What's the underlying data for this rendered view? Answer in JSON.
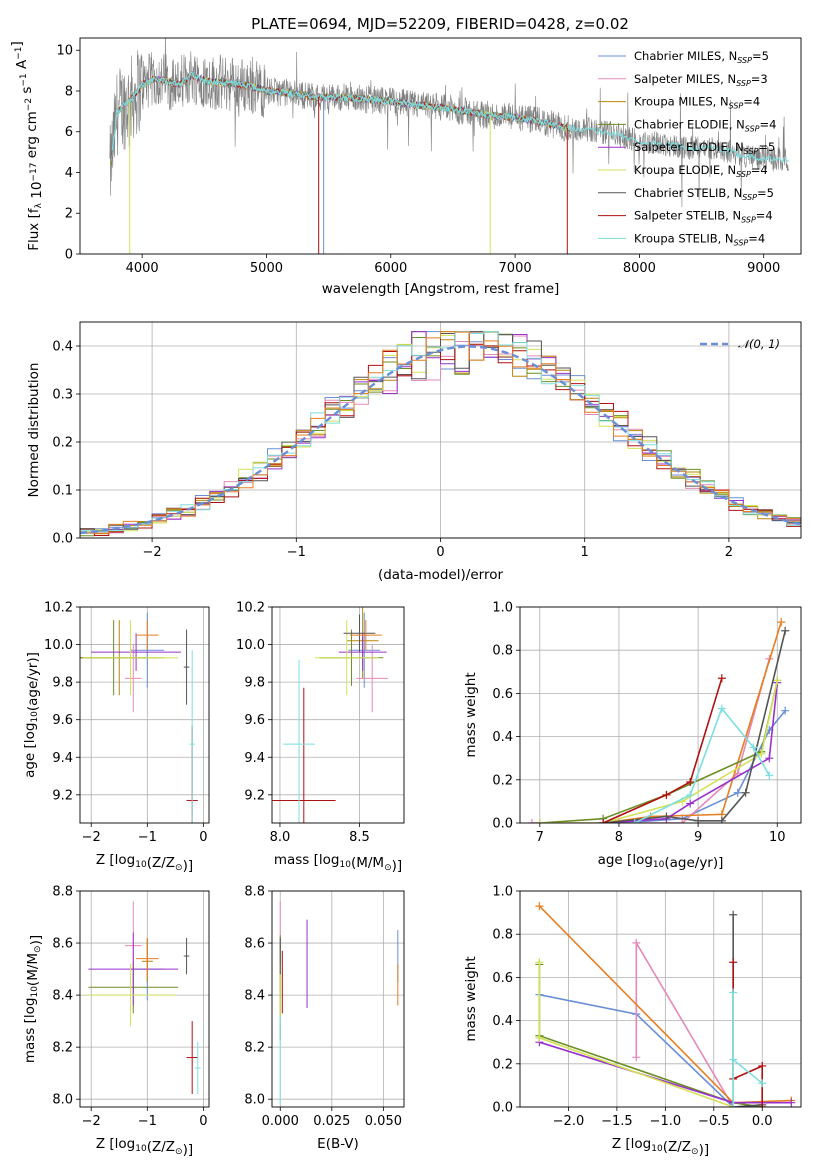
{
  "figure": {
    "title": "PLATE=0694, MJD=52209, FIBERID=0428, z=0.02",
    "series": [
      {
        "name": "Chabrier MILES, N_SSP=5",
        "nssp": "5",
        "color": "#6a8fd6"
      },
      {
        "name": "Salpeter MILES, N_SSP=3",
        "nssp": "3",
        "color": "#e589b8"
      },
      {
        "name": "Kroupa MILES, N_SSP=4",
        "nssp": "4",
        "color": "#b8860b"
      },
      {
        "name": "Chabrier ELODIE, N_SSP=4",
        "nssp": "4",
        "color": "#6b8e23"
      },
      {
        "name": "Salpeter ELODIE, N_SSP=5",
        "nssp": "5",
        "color": "#9932cc"
      },
      {
        "name": "Kroupa ELODIE, N_SSP=4",
        "nssp": "4",
        "color": "#d4e157"
      },
      {
        "name": "Chabrier STELIB, N_SSP=5",
        "nssp": "5",
        "color": "#555555"
      },
      {
        "name": "Salpeter STELIB, N_SSP=4",
        "nssp": "4",
        "color": "#b01010"
      },
      {
        "name": "Kroupa STELIB, N_SSP=4",
        "nssp": "4",
        "color": "#7ddede"
      }
    ],
    "extra_colors": {
      "orange": "#e67e22",
      "data": "#808080"
    }
  },
  "chart_data": [
    {
      "id": "spectrum",
      "type": "line",
      "title": "PLATE=0694, MJD=52209, FIBERID=0428, z=0.02",
      "xlabel": "wavelength [Angstrom, rest frame]",
      "ylabel": "Flux [f_λ 10^-17 erg cm^-2 s^-1 A^-1]",
      "xlim": [
        3500,
        9300
      ],
      "ylim": [
        0,
        10.6
      ],
      "xticks": [
        4000,
        5000,
        6000,
        7000,
        8000,
        9000
      ],
      "yticks": [
        0,
        2,
        4,
        6,
        8,
        10
      ],
      "grid": false,
      "legend": "top-right",
      "data_curve": {
        "x": [
          3740,
          3800,
          3900,
          4000,
          4100,
          4200,
          4300,
          4400,
          4500,
          4600,
          4700,
          4800,
          4900,
          5000,
          5200,
          5400,
          5600,
          5800,
          6000,
          6200,
          6400,
          6600,
          6800,
          7000,
          7200,
          7400,
          7600,
          7800,
          8000,
          8200,
          8400,
          8600,
          8800,
          9000,
          9200
        ],
        "y": [
          4.0,
          7.0,
          7.5,
          8.3,
          8.6,
          8.5,
          8.3,
          8.8,
          8.5,
          8.4,
          8.4,
          8.3,
          8.2,
          8.0,
          7.9,
          7.7,
          7.7,
          7.6,
          7.5,
          7.3,
          7.2,
          7.0,
          6.8,
          6.7,
          6.5,
          6.2,
          6.1,
          5.9,
          5.5,
          5.4,
          5.2,
          5.2,
          4.9,
          4.7,
          4.6
        ]
      },
      "clip_lines": [
        {
          "x": 3900,
          "color_index": 5
        },
        {
          "x": 5420,
          "color_index": 7
        },
        {
          "x": 5460,
          "color_index": 0
        },
        {
          "x": 6800,
          "color_index": 5
        },
        {
          "x": 7420,
          "color_index": 7
        }
      ]
    },
    {
      "id": "residuals",
      "type": "histogram",
      "xlabel": "(data-model)/error",
      "ylabel": "Normed distribution",
      "xlim": [
        -2.5,
        2.5
      ],
      "ylim": [
        0,
        0.45
      ],
      "xticks": [
        -2,
        -1,
        0,
        1,
        2
      ],
      "yticks": [
        0.0,
        0.1,
        0.2,
        0.3,
        0.4
      ],
      "grid": true,
      "legend": "top-right",
      "reference_curve": {
        "name": "N(0,1)",
        "mu": 0.2,
        "sigma": 1.0,
        "color": "#6a8fd6"
      },
      "bin_width": 0.1
    },
    {
      "id": "age-vs-z",
      "type": "scatter",
      "xlabel": "Z [log10(Z/Z_sun)]",
      "ylabel": "age [log10(age/yr)]",
      "xlim": [
        -2.2,
        0.1
      ],
      "ylim": [
        9.05,
        10.2
      ],
      "xticks": [
        -2,
        -1,
        0
      ],
      "yticks": [
        9.2,
        9.4,
        9.6,
        9.8,
        10.0,
        10.2
      ],
      "grid": true,
      "points": [
        {
          "c": 0,
          "x": -1.0,
          "y": 9.97,
          "xe": 0.3,
          "ye": 0.2
        },
        {
          "c": 1,
          "x": -1.25,
          "y": 9.82,
          "xe": 0.15,
          "ye": 0.18
        },
        {
          "c": 2,
          "x": -1.5,
          "y": 9.93,
          "xe": 0.8,
          "ye": 0.2
        },
        {
          "c": 3,
          "x": -1.6,
          "y": 9.93,
          "xe": 0.6,
          "ye": 0.2
        },
        {
          "c": 4,
          "x": -1.2,
          "y": 9.96,
          "xe": 0.8,
          "ye": 0.1
        },
        {
          "c": 5,
          "x": -1.3,
          "y": 9.93,
          "xe": 0.85,
          "ye": 0.2
        },
        {
          "c": 6,
          "x": -0.3,
          "y": 9.88,
          "xe": 0.05,
          "ye": 0.2
        },
        {
          "c": 7,
          "x": -0.2,
          "y": 9.17,
          "xe": 0.1,
          "ye": 0.4
        },
        {
          "c": 8,
          "x": -0.2,
          "y": 9.47,
          "xe": 0.05,
          "ye": 0.5
        },
        {
          "c": 9,
          "x": -1.0,
          "y": 10.05,
          "xe": 0.2,
          "ye": 0.08
        }
      ]
    },
    {
      "id": "age-vs-mass",
      "type": "scatter",
      "xlabel": "mass [log10(M/M_sun)]",
      "ylabel": "",
      "xlim": [
        7.95,
        8.78
      ],
      "ylim": [
        9.05,
        10.2
      ],
      "xticks": [
        8.0,
        8.5
      ],
      "yticks": [
        9.2,
        9.4,
        9.6,
        9.8,
        10.0,
        10.2
      ],
      "grid": true,
      "points": [
        {
          "c": 0,
          "x": 8.53,
          "y": 9.97,
          "xe": 0.1,
          "ye": 0.2
        },
        {
          "c": 1,
          "x": 8.58,
          "y": 9.82,
          "xe": 0.1,
          "ye": 0.18
        },
        {
          "c": 2,
          "x": 8.52,
          "y": 10.02,
          "xe": 0.1,
          "ye": 0.2
        },
        {
          "c": 3,
          "x": 8.45,
          "y": 9.93,
          "xe": 0.2,
          "ye": 0.15
        },
        {
          "c": 4,
          "x": 8.52,
          "y": 9.96,
          "xe": 0.15,
          "ye": 0.1
        },
        {
          "c": 5,
          "x": 8.42,
          "y": 9.93,
          "xe": 0.2,
          "ye": 0.2
        },
        {
          "c": 6,
          "x": 8.5,
          "y": 10.06,
          "xe": 0.1,
          "ye": 0.1
        },
        {
          "c": 7,
          "x": 8.15,
          "y": 9.17,
          "xe": 0.2,
          "ye": 0.6
        },
        {
          "c": 8,
          "x": 8.12,
          "y": 9.47,
          "xe": 0.1,
          "ye": 0.45
        },
        {
          "c": 9,
          "x": 8.54,
          "y": 10.05,
          "xe": 0.1,
          "ye": 0.08
        }
      ]
    },
    {
      "id": "weight-vs-age",
      "type": "line",
      "xlabel": "age [log10(age/yr)]",
      "ylabel": "mass weight",
      "xlim": [
        6.75,
        10.3
      ],
      "ylim": [
        0,
        1.0
      ],
      "xticks": [
        7,
        8,
        9,
        10
      ],
      "yticks": [
        0.0,
        0.2,
        0.4,
        0.6,
        0.8,
        1.0
      ],
      "grid": true,
      "series": [
        {
          "c": 0,
          "x": [
            8.0,
            8.8,
            9.5,
            9.9,
            10.1
          ],
          "y": [
            0.0,
            0.02,
            0.14,
            0.43,
            0.52
          ]
        },
        {
          "c": 1,
          "x": [
            6.9,
            8.8,
            9.5,
            9.9
          ],
          "y": [
            0.0,
            0.0,
            0.23,
            0.76
          ]
        },
        {
          "c": 9,
          "x": [
            7.8,
            8.4,
            9.3,
            10.05
          ],
          "y": [
            0.0,
            0.03,
            0.04,
            0.93
          ]
        },
        {
          "c": 3,
          "x": [
            7.0,
            7.8,
            8.6,
            9.8,
            10.0
          ],
          "y": [
            0.0,
            0.02,
            0.13,
            0.33,
            0.66
          ]
        },
        {
          "c": 4,
          "x": [
            7.8,
            8.6,
            8.9,
            9.9,
            10.0
          ],
          "y": [
            0.0,
            0.02,
            0.09,
            0.3,
            0.65
          ]
        },
        {
          "c": 5,
          "x": [
            7.0,
            7.8,
            8.8,
            9.8,
            10.0
          ],
          "y": [
            0.0,
            0.0,
            0.1,
            0.32,
            0.66
          ]
        },
        {
          "c": 6,
          "x": [
            7.8,
            8.6,
            9.0,
            9.3,
            9.6,
            10.1
          ],
          "y": [
            0.0,
            0.03,
            0.01,
            0.01,
            0.14,
            0.89
          ]
        },
        {
          "c": 7,
          "x": [
            7.8,
            8.6,
            8.9,
            9.3
          ],
          "y": [
            0.0,
            0.13,
            0.19,
            0.67
          ]
        },
        {
          "c": 8,
          "x": [
            8.2,
            8.9,
            9.3,
            9.7,
            9.9
          ],
          "y": [
            0.0,
            0.13,
            0.53,
            0.35,
            0.22
          ]
        }
      ]
    },
    {
      "id": "mass-vs-z",
      "type": "scatter",
      "xlabel": "Z [log10(Z/Z_sun)]",
      "ylabel": "mass [log10(M/M_sun)]",
      "xlim": [
        -2.2,
        0.1
      ],
      "ylim": [
        7.97,
        8.8
      ],
      "xticks": [
        -2,
        -1,
        0
      ],
      "yticks": [
        8.0,
        8.2,
        8.4,
        8.6,
        8.8
      ],
      "grid": true,
      "points": [
        {
          "c": 0,
          "x": -1.0,
          "y": 8.5,
          "xe": 0.3,
          "ye": 0.12
        },
        {
          "c": 1,
          "x": -1.25,
          "y": 8.59,
          "xe": 0.15,
          "ye": 0.17
        },
        {
          "c": 2,
          "x": -1.0,
          "y": 8.53,
          "xe": 0.1,
          "ye": 0.08
        },
        {
          "c": 3,
          "x": -1.25,
          "y": 8.43,
          "xe": 0.8,
          "ye": 0.1
        },
        {
          "c": 4,
          "x": -1.25,
          "y": 8.5,
          "xe": 0.8,
          "ye": 0.14
        },
        {
          "c": 5,
          "x": -1.3,
          "y": 8.4,
          "xe": 0.8,
          "ye": 0.12
        },
        {
          "c": 6,
          "x": -0.3,
          "y": 8.55,
          "xe": 0.05,
          "ye": 0.07
        },
        {
          "c": 7,
          "x": -0.2,
          "y": 8.16,
          "xe": 0.1,
          "ye": 0.14
        },
        {
          "c": 8,
          "x": -0.1,
          "y": 8.12,
          "xe": 0.05,
          "ye": 0.1
        },
        {
          "c": 9,
          "x": -1.0,
          "y": 8.54,
          "xe": 0.2,
          "ye": 0.08
        }
      ]
    },
    {
      "id": "mass-vs-ebv",
      "type": "scatter",
      "xlabel": "E(B-V)",
      "ylabel": "",
      "xlim": [
        -0.004,
        0.06
      ],
      "ylim": [
        7.97,
        8.8
      ],
      "xticks": [
        0.0,
        0.025,
        0.05
      ],
      "yticks": [
        8.0,
        8.2,
        8.4,
        8.6,
        8.8
      ],
      "grid": true,
      "points": [
        {
          "c": 0,
          "x": 0.057,
          "y": 8.55,
          "xe": 0,
          "ye": 0.1
        },
        {
          "c": 1,
          "x": 0.0,
          "y": 8.59,
          "xe": 0,
          "ye": 0.17
        },
        {
          "c": 9,
          "x": 0.057,
          "y": 8.44,
          "xe": 0,
          "ye": 0.08
        },
        {
          "c": 3,
          "x": 0.0,
          "y": 8.43,
          "xe": 0,
          "ye": 0.2
        },
        {
          "c": 4,
          "x": 0.013,
          "y": 8.52,
          "xe": 0,
          "ye": 0.17
        },
        {
          "c": 5,
          "x": 0.0,
          "y": 8.4,
          "xe": 0,
          "ye": 0.12
        },
        {
          "c": 6,
          "x": 0.0,
          "y": 8.55,
          "xe": 0,
          "ye": 0.07
        },
        {
          "c": 7,
          "x": 0.001,
          "y": 8.45,
          "xe": 0,
          "ye": 0.12
        },
        {
          "c": 8,
          "x": 0.0,
          "y": 8.15,
          "xe": 0,
          "ye": 0.17
        }
      ]
    },
    {
      "id": "weight-vs-z",
      "type": "line",
      "xlabel": "Z [log10(Z/Z_sun)]",
      "ylabel": "mass weight",
      "xlim": [
        -2.5,
        0.4
      ],
      "ylim": [
        0,
        1.0
      ],
      "xticks": [
        -2.0,
        -1.5,
        -1.0,
        -0.5,
        0.0
      ],
      "yticks": [
        0.0,
        0.2,
        0.4,
        0.6,
        0.8,
        1.0
      ],
      "grid": true,
      "series": [
        {
          "c": 0,
          "x": [
            -2.3,
            -1.3,
            -0.3
          ],
          "y": [
            0.52,
            0.43,
            0.0
          ]
        },
        {
          "c": 1,
          "x": [
            -1.3,
            -1.3,
            -0.3
          ],
          "y": [
            0.23,
            0.76,
            0.0
          ]
        },
        {
          "c": 9,
          "x": [
            -2.3,
            -0.3,
            0.3
          ],
          "y": [
            0.93,
            0.02,
            0.03
          ]
        },
        {
          "c": 3,
          "x": [
            -2.3,
            -2.3,
            -0.3,
            0.0
          ],
          "y": [
            0.66,
            0.33,
            0.02,
            0.0
          ]
        },
        {
          "c": 4,
          "x": [
            -2.3,
            -0.3,
            0.3
          ],
          "y": [
            0.3,
            0.02,
            0.02
          ]
        },
        {
          "c": 5,
          "x": [
            -2.3,
            -2.3,
            -0.3
          ],
          "y": [
            0.67,
            0.32,
            0.0
          ]
        },
        {
          "c": 6,
          "x": [
            -0.3,
            -0.3,
            0.0
          ],
          "y": [
            0.89,
            0.0,
            0.01
          ]
        },
        {
          "c": 7,
          "x": [
            -0.3,
            -0.3,
            0.0,
            0.0
          ],
          "y": [
            0.67,
            0.13,
            0.19,
            0.0
          ]
        },
        {
          "c": 8,
          "x": [
            -0.3,
            -0.3,
            -0.3,
            0.0
          ],
          "y": [
            0.53,
            0.0,
            0.22,
            0.11
          ]
        }
      ]
    }
  ]
}
